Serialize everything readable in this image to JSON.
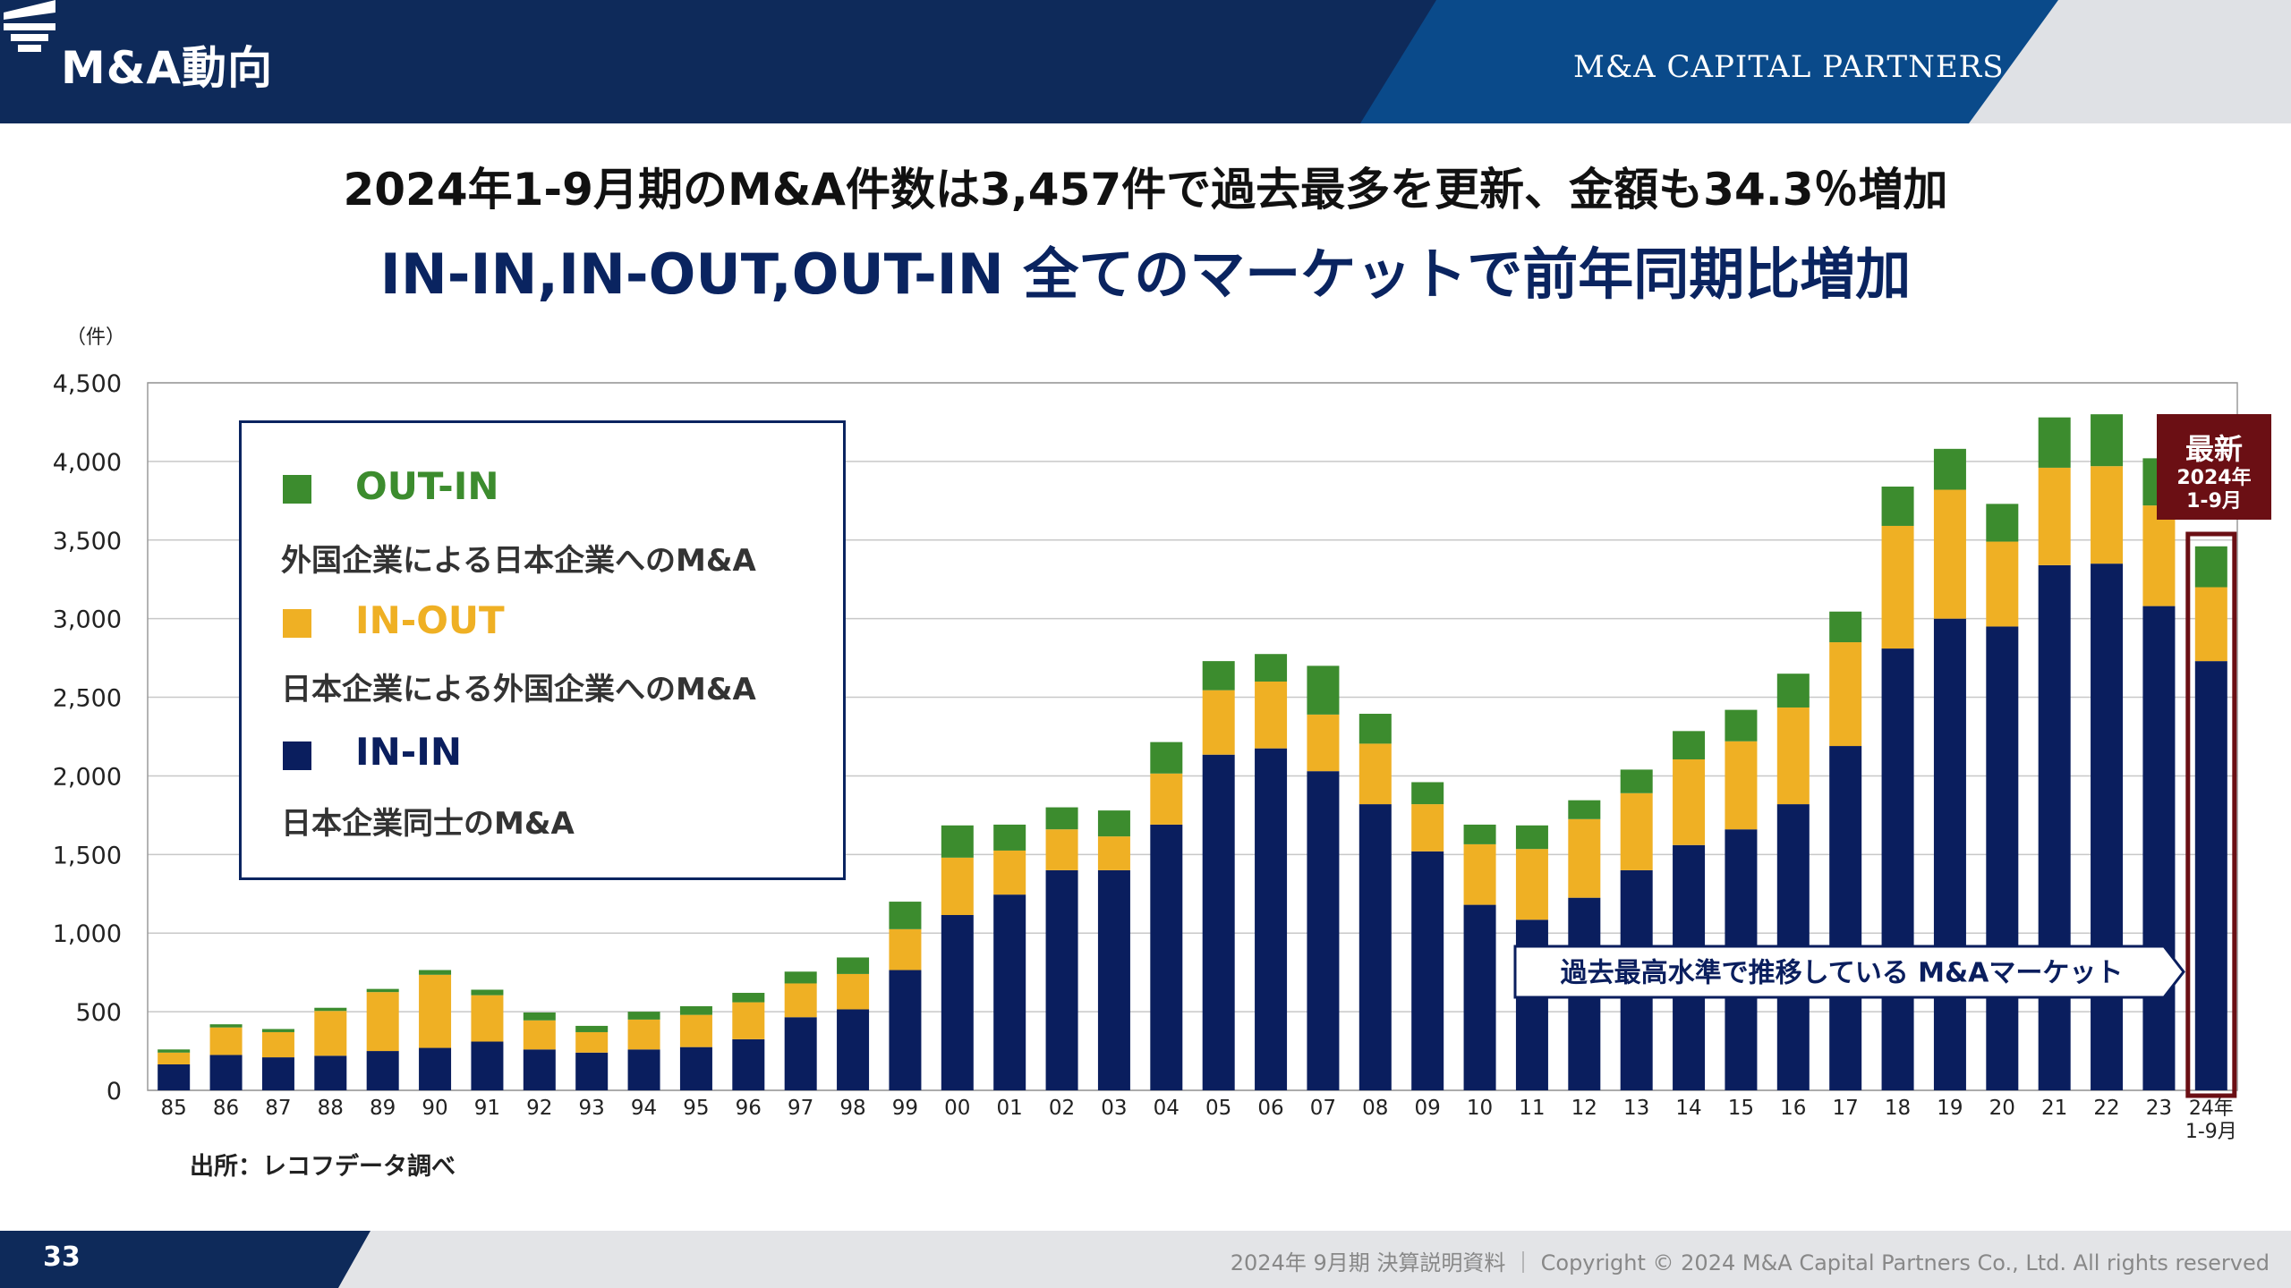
{
  "header": {
    "title": "M&A動向",
    "logo_text": "M&A CAPITAL PARTNERS",
    "colors": {
      "navy": "#0e2a5a",
      "blue": "#0a4a8a",
      "gray": "#dfe1e5"
    }
  },
  "headline": {
    "line1": "2024年1-9月期のM&A件数は3,457件で過去最多を更新、金額も34.3％増加",
    "line2": "IN-IN,IN-OUT,OUT-IN 全てのマーケットで前年同期比増加"
  },
  "legend": [
    {
      "name": "OUT-IN",
      "desc": "外国企業による日本企業へのM&A",
      "color": "#3c8c2e"
    },
    {
      "name": "IN-OUT",
      "desc": "日本企業による外国企業へのM&A",
      "color": "#efb024"
    },
    {
      "name": "IN-IN",
      "desc": "日本企業同士のM&A",
      "color": "#0a1e5e"
    }
  ],
  "source": "出所：レコフデータ調べ",
  "footer": {
    "page": "33",
    "text": "2024年 9月期 決算説明資料 ｜ Copyright © 2024 M&A Capital Partners Co., Ltd. All rights reserved"
  },
  "chart_data": {
    "type": "bar",
    "stacked": true,
    "unit_label": "（件）",
    "ylim": [
      0,
      4500
    ],
    "yticks": [
      0,
      500,
      1000,
      1500,
      2000,
      2500,
      3000,
      3500,
      4000,
      4500
    ],
    "ytick_labels": [
      "0",
      "500",
      "1,000",
      "1,500",
      "2,000",
      "2,500",
      "3,000",
      "3,500",
      "4,000",
      "4,500"
    ],
    "categories": [
      "85",
      "86",
      "87",
      "88",
      "89",
      "90",
      "91",
      "92",
      "93",
      "94",
      "95",
      "96",
      "97",
      "98",
      "99",
      "00",
      "01",
      "02",
      "03",
      "04",
      "05",
      "06",
      "07",
      "08",
      "09",
      "10",
      "11",
      "12",
      "13",
      "14",
      "15",
      "16",
      "17",
      "18",
      "19",
      "20",
      "21",
      "22",
      "23",
      "24年 1-9月"
    ],
    "series": [
      {
        "name": "IN-IN",
        "color": "#0a1e5e",
        "values": [
          165,
          225,
          210,
          220,
          250,
          270,
          310,
          260,
          240,
          260,
          275,
          325,
          465,
          515,
          765,
          1115,
          1245,
          1400,
          1400,
          1690,
          2135,
          2175,
          2030,
          1820,
          1520,
          1180,
          1085,
          1225,
          1400,
          1560,
          1660,
          1820,
          2190,
          2810,
          3000,
          2950,
          3340,
          3350,
          3080,
          2730
        ]
      },
      {
        "name": "IN-OUT",
        "color": "#efb024",
        "values": [
          75,
          175,
          160,
          285,
          375,
          465,
          295,
          185,
          130,
          190,
          205,
          235,
          215,
          225,
          260,
          365,
          280,
          260,
          215,
          325,
          410,
          425,
          360,
          385,
          300,
          385,
          450,
          500,
          490,
          545,
          560,
          615,
          660,
          780,
          820,
          540,
          620,
          620,
          640,
          470
        ]
      },
      {
        "name": "OUT-IN",
        "color": "#3c8c2e",
        "values": [
          20,
          20,
          20,
          20,
          20,
          30,
          35,
          50,
          40,
          50,
          55,
          60,
          75,
          105,
          175,
          205,
          165,
          140,
          165,
          200,
          185,
          175,
          310,
          190,
          140,
          125,
          150,
          120,
          150,
          180,
          200,
          215,
          195,
          250,
          260,
          240,
          320,
          330,
          300,
          260
        ]
      }
    ],
    "latest_badge": {
      "title": "最新",
      "subtitle_year": "2024年",
      "subtitle_period": "1-9月"
    },
    "annotation": "過去最高水準で推移している M&Aマーケット"
  }
}
